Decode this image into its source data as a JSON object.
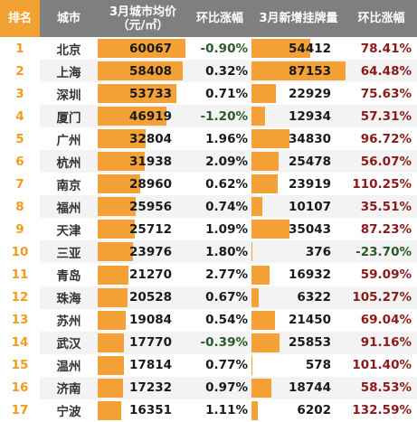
{
  "header": {
    "rank": "排名",
    "city": "城市",
    "price_line1": "3月城市均价",
    "price_line2": "（元/㎡）",
    "mom_price": "环比涨幅",
    "listings": "3月新增挂牌量",
    "mom_listings": "环比涨幅"
  },
  "colors": {
    "accent": "#f4a137",
    "header_bg": "#7f7f7f",
    "rank_header_bg": "#f0a131"
  },
  "rows": [
    {
      "rank": "1",
      "city": "北京",
      "price": "60067",
      "price_change": "-0.90%",
      "listings": "54412",
      "listings_change": "78.41%"
    },
    {
      "rank": "2",
      "city": "上海",
      "price": "58408",
      "price_change": "0.32%",
      "listings": "87153",
      "listings_change": "64.48%"
    },
    {
      "rank": "3",
      "city": "深圳",
      "price": "53733",
      "price_change": "0.71%",
      "listings": "22929",
      "listings_change": "75.63%"
    },
    {
      "rank": "4",
      "city": "厦门",
      "price": "46919",
      "price_change": "-1.20%",
      "listings": "12934",
      "listings_change": "57.31%"
    },
    {
      "rank": "5",
      "city": "广州",
      "price": "32804",
      "price_change": "1.96%",
      "listings": "34830",
      "listings_change": "96.72%"
    },
    {
      "rank": "6",
      "city": "杭州",
      "price": "31938",
      "price_change": "2.09%",
      "listings": "25478",
      "listings_change": "56.07%"
    },
    {
      "rank": "7",
      "city": "南京",
      "price": "28960",
      "price_change": "0.62%",
      "listings": "23919",
      "listings_change": "110.25%"
    },
    {
      "rank": "8",
      "city": "福州",
      "price": "25956",
      "price_change": "0.74%",
      "listings": "10107",
      "listings_change": "35.51%"
    },
    {
      "rank": "9",
      "city": "天津",
      "price": "25712",
      "price_change": "1.09%",
      "listings": "35043",
      "listings_change": "87.23%"
    },
    {
      "rank": "10",
      "city": "三亚",
      "price": "23976",
      "price_change": "1.80%",
      "listings": "376",
      "listings_change": "-23.70%"
    },
    {
      "rank": "11",
      "city": "青岛",
      "price": "21270",
      "price_change": "2.77%",
      "listings": "16932",
      "listings_change": "59.09%"
    },
    {
      "rank": "12",
      "city": "珠海",
      "price": "20528",
      "price_change": "0.67%",
      "listings": "6322",
      "listings_change": "105.27%"
    },
    {
      "rank": "13",
      "city": "苏州",
      "price": "19084",
      "price_change": "0.54%",
      "listings": "21450",
      "listings_change": "69.04%"
    },
    {
      "rank": "14",
      "city": "武汉",
      "price": "17770",
      "price_change": "-0.39%",
      "listings": "25853",
      "listings_change": "91.16%"
    },
    {
      "rank": "15",
      "city": "温州",
      "price": "17814",
      "price_change": "0.77%",
      "listings": "578",
      "listings_change": "101.40%"
    },
    {
      "rank": "16",
      "city": "济南",
      "price": "17232",
      "price_change": "0.97%",
      "listings": "18744",
      "listings_change": "58.53%"
    },
    {
      "rank": "17",
      "city": "宁波",
      "price": "16351",
      "price_change": "1.11%",
      "listings": "6202",
      "listings_change": "132.59%"
    }
  ]
}
